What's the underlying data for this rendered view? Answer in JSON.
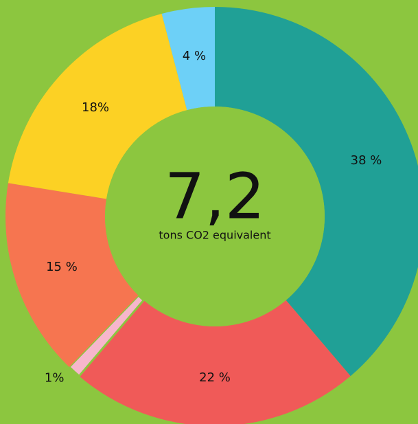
{
  "chart_data": {
    "type": "donut",
    "center_value": "7,2",
    "center_label": "tons CO2 equivalent",
    "values": [
      38,
      22,
      1,
      15,
      18,
      4
    ],
    "value_labels": [
      "38 %",
      "22 %",
      "1%",
      "15 %",
      "18%",
      "4 %"
    ],
    "colors": [
      "#20a096",
      "#f05a58",
      "#f7b6cc",
      "#f67550",
      "#fcd124",
      "#6dd0f7"
    ],
    "background": "#8cc63f"
  }
}
